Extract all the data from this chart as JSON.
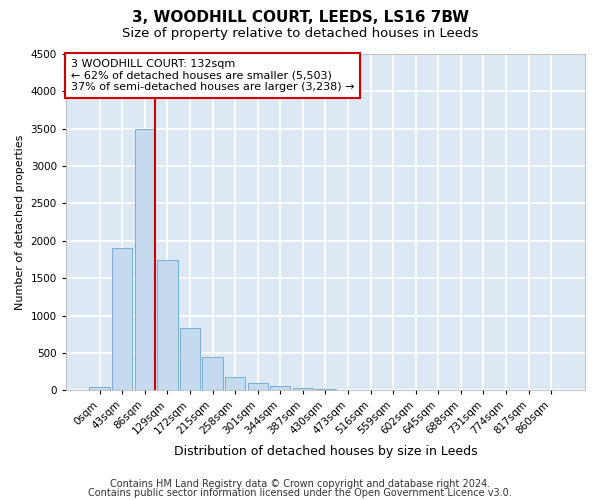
{
  "title": "3, WOODHILL COURT, LEEDS, LS16 7BW",
  "subtitle": "Size of property relative to detached houses in Leeds",
  "xlabel": "Distribution of detached houses by size in Leeds",
  "ylabel": "Number of detached properties",
  "bin_labels": [
    "0sqm",
    "43sqm",
    "86sqm",
    "129sqm",
    "172sqm",
    "215sqm",
    "258sqm",
    "301sqm",
    "344sqm",
    "387sqm",
    "430sqm",
    "473sqm",
    "516sqm",
    "559sqm",
    "602sqm",
    "645sqm",
    "688sqm",
    "731sqm",
    "774sqm",
    "817sqm",
    "860sqm"
  ],
  "bar_heights": [
    50,
    1900,
    3500,
    1750,
    830,
    450,
    175,
    100,
    60,
    30,
    15,
    5,
    2,
    1,
    0,
    0,
    0,
    0,
    0,
    0,
    0
  ],
  "bar_color": "#c5d9ef",
  "bar_edge_color": "#7aadd4",
  "annotation_text": "3 WOODHILL COURT: 132sqm\n← 62% of detached houses are smaller (5,503)\n37% of semi-detached houses are larger (3,238) →",
  "annotation_box_facecolor": "#ffffff",
  "annotation_box_edgecolor": "#cc0000",
  "vline_color": "#cc0000",
  "ylim": [
    0,
    4500
  ],
  "yticks": [
    0,
    500,
    1000,
    1500,
    2000,
    2500,
    3000,
    3500,
    4000,
    4500
  ],
  "footer_line1": "Contains HM Land Registry data © Crown copyright and database right 2024.",
  "footer_line2": "Contains public sector information licensed under the Open Government Licence v3.0.",
  "fig_bg_color": "#ffffff",
  "plot_bg_color": "#dce9f5",
  "grid_color": "#ffffff",
  "title_fontsize": 11,
  "subtitle_fontsize": 9.5,
  "xlabel_fontsize": 9,
  "ylabel_fontsize": 8,
  "footer_fontsize": 7,
  "tick_fontsize": 7.5,
  "annot_fontsize": 8
}
